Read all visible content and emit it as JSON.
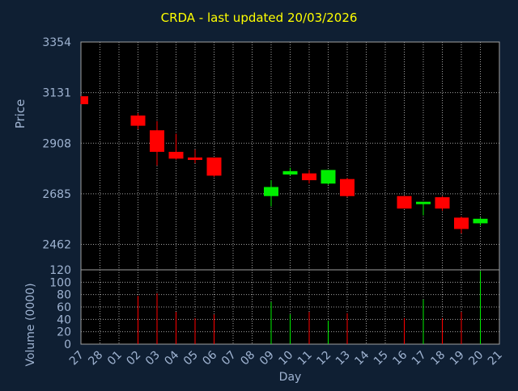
{
  "title": "CRDA - last updated 20/03/2026",
  "chart_data": [
    {
      "type": "candlestick",
      "ylabel": "Price",
      "ylim": [
        2350,
        3354
      ],
      "yticks": [
        3354,
        3131,
        2908,
        2685,
        2462
      ],
      "grid": true,
      "candles": [
        {
          "day": "27",
          "open": 3115,
          "high": 3115,
          "low": 3080,
          "close": 3080
        },
        {
          "day": "02",
          "open": 3030,
          "high": 3040,
          "low": 2970,
          "close": 2985
        },
        {
          "day": "03",
          "open": 2965,
          "high": 3005,
          "low": 2810,
          "close": 2870
        },
        {
          "day": "04",
          "open": 2870,
          "high": 2950,
          "low": 2835,
          "close": 2840
        },
        {
          "day": "05",
          "open": 2845,
          "high": 2880,
          "low": 2820,
          "close": 2835
        },
        {
          "day": "06",
          "open": 2845,
          "high": 2845,
          "low": 2760,
          "close": 2765
        },
        {
          "day": "09",
          "open": 2675,
          "high": 2745,
          "low": 2630,
          "close": 2715
        },
        {
          "day": "10",
          "open": 2770,
          "high": 2800,
          "low": 2765,
          "close": 2785
        },
        {
          "day": "11",
          "open": 2775,
          "high": 2790,
          "low": 2730,
          "close": 2745
        },
        {
          "day": "12",
          "open": 2730,
          "high": 2790,
          "low": 2725,
          "close": 2790
        },
        {
          "day": "13",
          "open": 2750,
          "high": 2755,
          "low": 2670,
          "close": 2675
        },
        {
          "day": "16",
          "open": 2675,
          "high": 2675,
          "low": 2620,
          "close": 2620
        },
        {
          "day": "17",
          "open": 2645,
          "high": 2650,
          "low": 2590,
          "close": 2650
        },
        {
          "day": "18",
          "open": 2670,
          "high": 2675,
          "low": 2610,
          "close": 2620
        },
        {
          "day": "19",
          "open": 2580,
          "high": 2585,
          "low": 2510,
          "close": 2530
        },
        {
          "day": "20",
          "open": 2555,
          "high": 2580,
          "low": 2545,
          "close": 2575
        }
      ]
    },
    {
      "type": "bar",
      "ylabel": "Volume (0000)",
      "xlabel": "Day",
      "ylim": [
        0,
        120
      ],
      "yticks": [
        120,
        100,
        80,
        60,
        40,
        20,
        0
      ],
      "categories": [
        "27",
        "28",
        "01",
        "02",
        "03",
        "04",
        "05",
        "06",
        "07",
        "08",
        "09",
        "10",
        "11",
        "12",
        "13",
        "14",
        "15",
        "16",
        "17",
        "18",
        "19",
        "20",
        "21"
      ],
      "volumes": [
        {
          "day": "02",
          "value": 78,
          "direction": "down"
        },
        {
          "day": "03",
          "value": 82,
          "direction": "down"
        },
        {
          "day": "04",
          "value": 52,
          "direction": "down"
        },
        {
          "day": "05",
          "value": 42,
          "direction": "down"
        },
        {
          "day": "06",
          "value": 48,
          "direction": "down"
        },
        {
          "day": "09",
          "value": 68,
          "direction": "up"
        },
        {
          "day": "10",
          "value": 48,
          "direction": "up"
        },
        {
          "day": "11",
          "value": 52,
          "direction": "down"
        },
        {
          "day": "12",
          "value": 38,
          "direction": "up"
        },
        {
          "day": "13",
          "value": 50,
          "direction": "down"
        },
        {
          "day": "16",
          "value": 42,
          "direction": "down"
        },
        {
          "day": "17",
          "value": 72,
          "direction": "up"
        },
        {
          "day": "18",
          "value": 42,
          "direction": "down"
        },
        {
          "day": "19",
          "value": 52,
          "direction": "down"
        },
        {
          "day": "20",
          "value": 118,
          "direction": "up"
        }
      ]
    }
  ],
  "colors": {
    "background": "#0f1f33",
    "plot": "#000000",
    "up": "#00ee00",
    "down": "#ff0000",
    "title": "#ffff00",
    "axis_text": "#9fb3d1",
    "grid": "#a0a0a0"
  }
}
